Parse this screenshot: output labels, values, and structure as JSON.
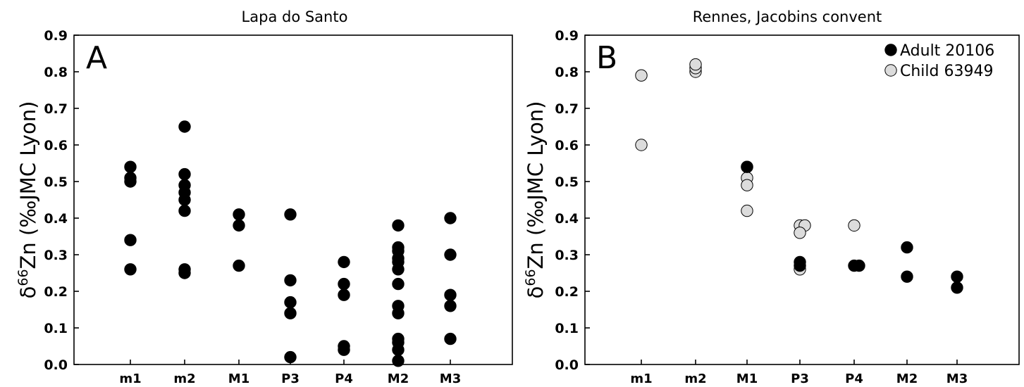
{
  "chart_data": [
    {
      "type": "scatter",
      "title": "Lapa do Santo",
      "panel_label": "A",
      "ylabel_prefix": "δ",
      "ylabel_sup": "66",
      "ylabel_rest": "Zn (‰JMC Lyon)",
      "ylim": [
        0.0,
        0.9
      ],
      "yticks": [
        "0.0",
        "0.1",
        "0.2",
        "0.3",
        "0.4",
        "0.5",
        "0.6",
        "0.7",
        "0.8",
        "0.9"
      ],
      "categories": [
        "m1",
        "m2",
        "M1",
        "P3",
        "P4",
        "M2",
        "M3"
      ],
      "grid": false,
      "series": [
        {
          "color": "#000000",
          "edge": "#000000",
          "points": [
            {
              "x": "m1",
              "y": 0.54
            },
            {
              "x": "m1",
              "y": 0.51
            },
            {
              "x": "m1",
              "y": 0.5
            },
            {
              "x": "m1",
              "y": 0.34
            },
            {
              "x": "m1",
              "y": 0.26
            },
            {
              "x": "m2",
              "y": 0.65
            },
            {
              "x": "m2",
              "y": 0.52
            },
            {
              "x": "m2",
              "y": 0.49
            },
            {
              "x": "m2",
              "y": 0.47
            },
            {
              "x": "m2",
              "y": 0.45
            },
            {
              "x": "m2",
              "y": 0.42
            },
            {
              "x": "m2",
              "y": 0.26
            },
            {
              "x": "m2",
              "y": 0.25
            },
            {
              "x": "M1",
              "y": 0.41
            },
            {
              "x": "M1",
              "y": 0.38
            },
            {
              "x": "M1",
              "y": 0.27
            },
            {
              "x": "P3",
              "y": 0.41
            },
            {
              "x": "P3",
              "y": 0.23
            },
            {
              "x": "P3",
              "y": 0.17
            },
            {
              "x": "P3",
              "y": 0.14
            },
            {
              "x": "P3",
              "y": 0.02
            },
            {
              "x": "P4",
              "y": 0.28
            },
            {
              "x": "P4",
              "y": 0.22
            },
            {
              "x": "P4",
              "y": 0.19
            },
            {
              "x": "P4",
              "y": 0.05
            },
            {
              "x": "P4",
              "y": 0.04
            },
            {
              "x": "M2",
              "y": 0.38
            },
            {
              "x": "M2",
              "y": 0.32
            },
            {
              "x": "M2",
              "y": 0.31
            },
            {
              "x": "M2",
              "y": 0.29
            },
            {
              "x": "M2",
              "y": 0.28
            },
            {
              "x": "M2",
              "y": 0.26
            },
            {
              "x": "M2",
              "y": 0.22
            },
            {
              "x": "M2",
              "y": 0.16
            },
            {
              "x": "M2",
              "y": 0.14
            },
            {
              "x": "M2",
              "y": 0.07
            },
            {
              "x": "M2",
              "y": 0.06
            },
            {
              "x": "M2",
              "y": 0.04
            },
            {
              "x": "M2",
              "y": 0.01
            },
            {
              "x": "M3",
              "y": 0.4
            },
            {
              "x": "M3",
              "y": 0.3
            },
            {
              "x": "M3",
              "y": 0.19
            },
            {
              "x": "M3",
              "y": 0.16
            },
            {
              "x": "M3",
              "y": 0.07
            }
          ]
        }
      ]
    },
    {
      "type": "scatter",
      "title": "Rennes, Jacobins convent",
      "panel_label": "B",
      "ylabel_prefix": "δ",
      "ylabel_sup": "66",
      "ylabel_rest": "Zn (‰JMC Lyon)",
      "ylim": [
        0.0,
        0.9
      ],
      "yticks": [
        "0.0",
        "0.1",
        "0.2",
        "0.3",
        "0.4",
        "0.5",
        "0.6",
        "0.7",
        "0.8",
        "0.9"
      ],
      "categories": [
        "m1",
        "m2",
        "M1",
        "P3",
        "P4",
        "M2",
        "M3"
      ],
      "grid": false,
      "legend_position": "top-right",
      "series": [
        {
          "name": "Child 63949",
          "color": "#dcdcdc",
          "edge": "#000000",
          "points": [
            {
              "x": "m1",
              "y": 0.79
            },
            {
              "x": "m1",
              "y": 0.6
            },
            {
              "x": "m2",
              "y": 0.8
            },
            {
              "x": "m2",
              "y": 0.81
            },
            {
              "x": "m2",
              "y": 0.82
            },
            {
              "x": "M1",
              "y": 0.54
            },
            {
              "x": "M1",
              "y": 0.51
            },
            {
              "x": "M1",
              "y": 0.49
            },
            {
              "x": "M1",
              "y": 0.42
            },
            {
              "x": "P3",
              "y": 0.38
            },
            {
              "x": "P3",
              "y": 0.38
            },
            {
              "x": "P3",
              "y": 0.36
            },
            {
              "x": "P3",
              "y": 0.26
            },
            {
              "x": "P4",
              "y": 0.38
            }
          ]
        },
        {
          "name": "Adult 20106",
          "color": "#000000",
          "edge": "#000000",
          "points": [
            {
              "x": "M1",
              "y": 0.54
            },
            {
              "x": "P3",
              "y": 0.28
            },
            {
              "x": "P3",
              "y": 0.27
            },
            {
              "x": "P4",
              "y": 0.27
            },
            {
              "x": "P4",
              "y": 0.27
            },
            {
              "x": "M2",
              "y": 0.32
            },
            {
              "x": "M2",
              "y": 0.24
            },
            {
              "x": "M3",
              "y": 0.24
            },
            {
              "x": "M3",
              "y": 0.21
            }
          ]
        }
      ],
      "legend_order": [
        "Adult 20106",
        "Child 63949"
      ]
    }
  ]
}
